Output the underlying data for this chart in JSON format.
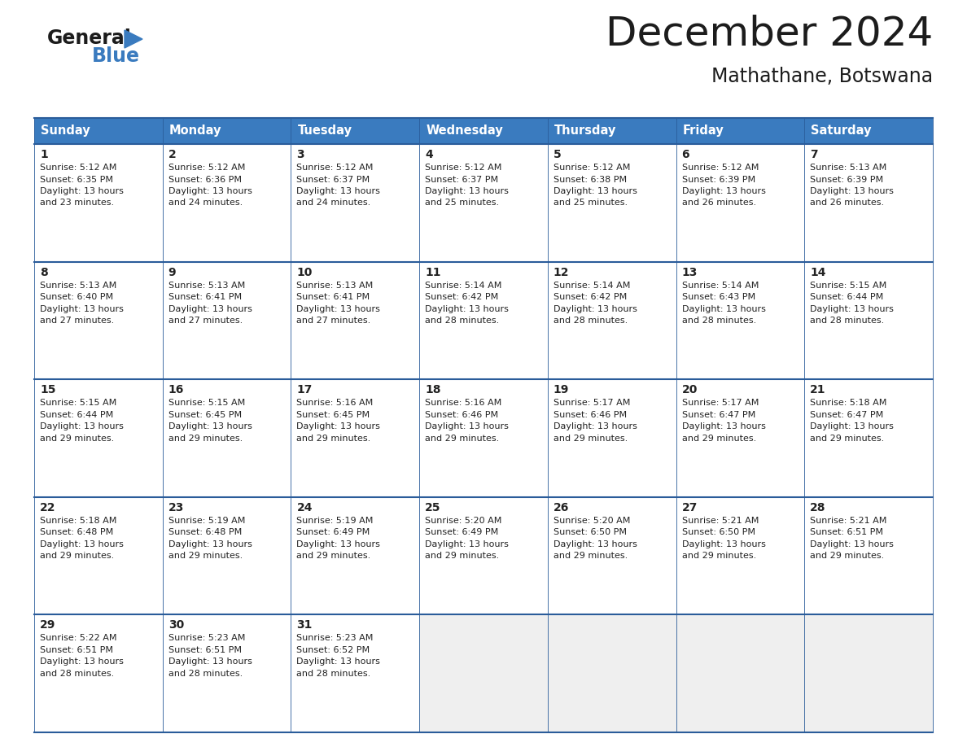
{
  "title": "December 2024",
  "subtitle": "Mathathane, Botswana",
  "header_color": "#3a7bbf",
  "header_text_color": "#ffffff",
  "cell_bg_white": "#ffffff",
  "cell_bg_gray": "#efefef",
  "border_color": "#2a5c9a",
  "text_color": "#222222",
  "days_of_week": [
    "Sunday",
    "Monday",
    "Tuesday",
    "Wednesday",
    "Thursday",
    "Friday",
    "Saturday"
  ],
  "calendar": [
    [
      {
        "day": 1,
        "sunrise": "5:12 AM",
        "sunset": "6:35 PM",
        "daylight_hours": 13,
        "daylight_minutes": 23
      },
      {
        "day": 2,
        "sunrise": "5:12 AM",
        "sunset": "6:36 PM",
        "daylight_hours": 13,
        "daylight_minutes": 24
      },
      {
        "day": 3,
        "sunrise": "5:12 AM",
        "sunset": "6:37 PM",
        "daylight_hours": 13,
        "daylight_minutes": 24
      },
      {
        "day": 4,
        "sunrise": "5:12 AM",
        "sunset": "6:37 PM",
        "daylight_hours": 13,
        "daylight_minutes": 25
      },
      {
        "day": 5,
        "sunrise": "5:12 AM",
        "sunset": "6:38 PM",
        "daylight_hours": 13,
        "daylight_minutes": 25
      },
      {
        "day": 6,
        "sunrise": "5:12 AM",
        "sunset": "6:39 PM",
        "daylight_hours": 13,
        "daylight_minutes": 26
      },
      {
        "day": 7,
        "sunrise": "5:13 AM",
        "sunset": "6:39 PM",
        "daylight_hours": 13,
        "daylight_minutes": 26
      }
    ],
    [
      {
        "day": 8,
        "sunrise": "5:13 AM",
        "sunset": "6:40 PM",
        "daylight_hours": 13,
        "daylight_minutes": 27
      },
      {
        "day": 9,
        "sunrise": "5:13 AM",
        "sunset": "6:41 PM",
        "daylight_hours": 13,
        "daylight_minutes": 27
      },
      {
        "day": 10,
        "sunrise": "5:13 AM",
        "sunset": "6:41 PM",
        "daylight_hours": 13,
        "daylight_minutes": 27
      },
      {
        "day": 11,
        "sunrise": "5:14 AM",
        "sunset": "6:42 PM",
        "daylight_hours": 13,
        "daylight_minutes": 28
      },
      {
        "day": 12,
        "sunrise": "5:14 AM",
        "sunset": "6:42 PM",
        "daylight_hours": 13,
        "daylight_minutes": 28
      },
      {
        "day": 13,
        "sunrise": "5:14 AM",
        "sunset": "6:43 PM",
        "daylight_hours": 13,
        "daylight_minutes": 28
      },
      {
        "day": 14,
        "sunrise": "5:15 AM",
        "sunset": "6:44 PM",
        "daylight_hours": 13,
        "daylight_minutes": 28
      }
    ],
    [
      {
        "day": 15,
        "sunrise": "5:15 AM",
        "sunset": "6:44 PM",
        "daylight_hours": 13,
        "daylight_minutes": 29
      },
      {
        "day": 16,
        "sunrise": "5:15 AM",
        "sunset": "6:45 PM",
        "daylight_hours": 13,
        "daylight_minutes": 29
      },
      {
        "day": 17,
        "sunrise": "5:16 AM",
        "sunset": "6:45 PM",
        "daylight_hours": 13,
        "daylight_minutes": 29
      },
      {
        "day": 18,
        "sunrise": "5:16 AM",
        "sunset": "6:46 PM",
        "daylight_hours": 13,
        "daylight_minutes": 29
      },
      {
        "day": 19,
        "sunrise": "5:17 AM",
        "sunset": "6:46 PM",
        "daylight_hours": 13,
        "daylight_minutes": 29
      },
      {
        "day": 20,
        "sunrise": "5:17 AM",
        "sunset": "6:47 PM",
        "daylight_hours": 13,
        "daylight_minutes": 29
      },
      {
        "day": 21,
        "sunrise": "5:18 AM",
        "sunset": "6:47 PM",
        "daylight_hours": 13,
        "daylight_minutes": 29
      }
    ],
    [
      {
        "day": 22,
        "sunrise": "5:18 AM",
        "sunset": "6:48 PM",
        "daylight_hours": 13,
        "daylight_minutes": 29
      },
      {
        "day": 23,
        "sunrise": "5:19 AM",
        "sunset": "6:48 PM",
        "daylight_hours": 13,
        "daylight_minutes": 29
      },
      {
        "day": 24,
        "sunrise": "5:19 AM",
        "sunset": "6:49 PM",
        "daylight_hours": 13,
        "daylight_minutes": 29
      },
      {
        "day": 25,
        "sunrise": "5:20 AM",
        "sunset": "6:49 PM",
        "daylight_hours": 13,
        "daylight_minutes": 29
      },
      {
        "day": 26,
        "sunrise": "5:20 AM",
        "sunset": "6:50 PM",
        "daylight_hours": 13,
        "daylight_minutes": 29
      },
      {
        "day": 27,
        "sunrise": "5:21 AM",
        "sunset": "6:50 PM",
        "daylight_hours": 13,
        "daylight_minutes": 29
      },
      {
        "day": 28,
        "sunrise": "5:21 AM",
        "sunset": "6:51 PM",
        "daylight_hours": 13,
        "daylight_minutes": 29
      }
    ],
    [
      {
        "day": 29,
        "sunrise": "5:22 AM",
        "sunset": "6:51 PM",
        "daylight_hours": 13,
        "daylight_minutes": 28
      },
      {
        "day": 30,
        "sunrise": "5:23 AM",
        "sunset": "6:51 PM",
        "daylight_hours": 13,
        "daylight_minutes": 28
      },
      {
        "day": 31,
        "sunrise": "5:23 AM",
        "sunset": "6:52 PM",
        "daylight_hours": 13,
        "daylight_minutes": 28
      },
      null,
      null,
      null,
      null
    ]
  ],
  "figwidth": 11.88,
  "figheight": 9.18,
  "dpi": 100
}
